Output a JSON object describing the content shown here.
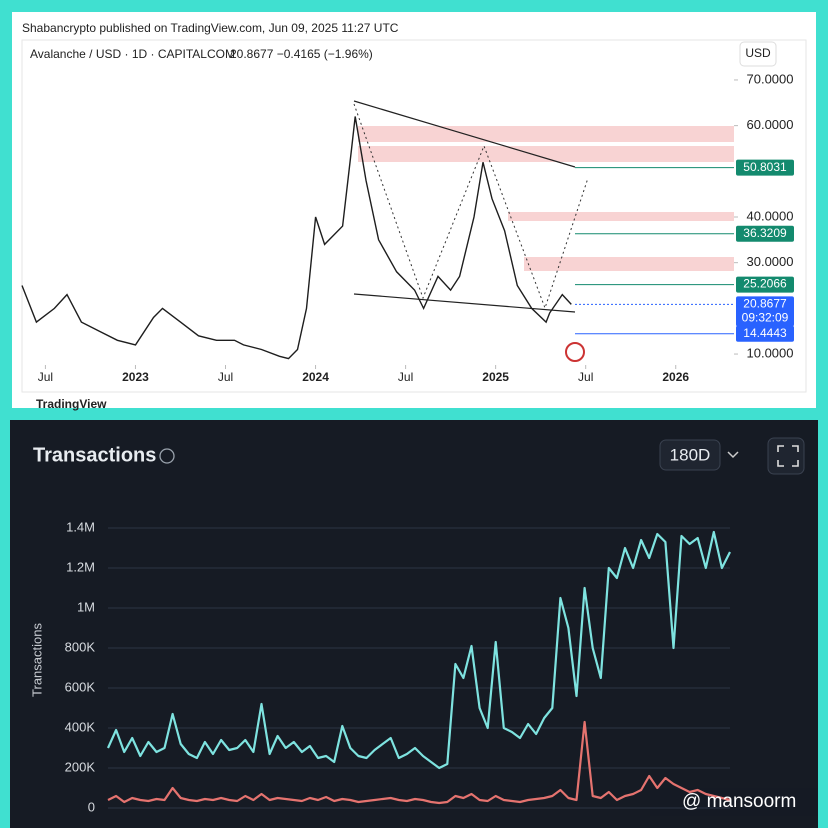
{
  "chart_data": [
    {
      "type": "price",
      "source": "Shabancrypto published on TradingView.com, Jun 09, 2025 11:27 UTC",
      "title": "Avalanche / USD · 1D · CAPITALCOM",
      "price_info": "20.8677 −0.4165 (−1.96%)",
      "currency": "USD",
      "brand": "TradingView",
      "x": [
        2022.37,
        2022.45,
        2022.55,
        2022.62,
        2022.7,
        2022.8,
        2022.9,
        2023.0,
        2023.1,
        2023.15,
        2023.25,
        2023.35,
        2023.45,
        2023.55,
        2023.6,
        2023.7,
        2023.8,
        2023.85,
        2023.9,
        2023.95,
        2024.0,
        2024.05,
        2024.15,
        2024.2,
        2024.22,
        2024.28,
        2024.35,
        2024.45,
        2024.55,
        2024.6,
        2024.68,
        2024.75,
        2024.8,
        2024.88,
        2024.93,
        2024.98,
        2025.05,
        2025.12,
        2025.2,
        2025.28,
        2025.3,
        2025.37,
        2025.42
      ],
      "values": [
        25,
        17,
        20,
        23,
        17,
        15,
        13,
        12,
        18,
        20,
        17,
        14,
        13,
        13,
        12,
        11,
        9.5,
        9,
        11,
        20,
        40,
        34,
        38,
        55,
        62,
        48,
        35,
        28,
        24,
        20,
        27,
        24,
        27,
        40,
        52,
        44,
        37,
        25,
        20,
        17,
        19,
        23,
        20.8677
      ],
      "color": "#1e1e1e",
      "xlim": [
        2022.37,
        2026.69
      ],
      "ylim": [
        7.6,
        78
      ],
      "xticks": [
        {
          "value": 2022.5,
          "label": "Jul"
        },
        {
          "value": 2023,
          "label": "2023"
        },
        {
          "value": 2023.5,
          "label": "Jul"
        },
        {
          "value": 2024,
          "label": "2024"
        },
        {
          "value": 2024.5,
          "label": "Jul"
        },
        {
          "value": 2025,
          "label": "2025"
        },
        {
          "value": 2025.5,
          "label": "Jul"
        },
        {
          "value": 2026,
          "label": "2026"
        }
      ],
      "yticks": [
        {
          "value": 70,
          "label": "70.0000"
        },
        {
          "value": 60,
          "label": "60.0000"
        },
        {
          "value": 40,
          "label": "40.0000"
        },
        {
          "value": 30,
          "label": "30.0000"
        },
        {
          "value": 10,
          "label": "10.0000"
        }
      ],
      "levels": [
        {
          "value": 50.8031,
          "color": "#138a6e"
        },
        {
          "value": 36.3209,
          "color": "#138a6e"
        },
        {
          "value": 25.2066,
          "color": "#138a6e"
        },
        {
          "value": 20.8677,
          "color": "#2962ff"
        },
        {
          "value": 14.4443,
          "color": "#2962ff"
        }
      ],
      "countdown": "09:32:09"
    },
    {
      "type": "line",
      "title": "Transactions",
      "ylabel": "Transactions",
      "range_button": "180D",
      "watermark": "@ mansoorm",
      "series": [
        {
          "color": "#7ee3e0",
          "values": [
            300000,
            390000,
            280000,
            350000,
            260000,
            330000,
            280000,
            300000,
            470000,
            320000,
            270000,
            250000,
            330000,
            270000,
            340000,
            290000,
            300000,
            340000,
            280000,
            520000,
            270000,
            360000,
            300000,
            330000,
            280000,
            310000,
            250000,
            260000,
            230000,
            410000,
            300000,
            260000,
            250000,
            290000,
            320000,
            350000,
            250000,
            270000,
            300000,
            260000,
            230000,
            200000,
            220000,
            720000,
            650000,
            810000,
            500000,
            400000,
            830000,
            400000,
            380000,
            350000,
            420000,
            370000,
            450000,
            500000,
            1050000,
            900000,
            560000,
            1100000,
            800000,
            650000,
            1200000,
            1150000,
            1300000,
            1200000,
            1340000,
            1250000,
            1370000,
            1330000,
            800000,
            1360000,
            1320000,
            1350000,
            1200000,
            1380000,
            1200000,
            1280000
          ]
        },
        {
          "color": "#e5736f",
          "values": [
            40000,
            60000,
            30000,
            50000,
            40000,
            35000,
            45000,
            40000,
            100000,
            50000,
            40000,
            35000,
            45000,
            40000,
            50000,
            40000,
            35000,
            60000,
            40000,
            70000,
            40000,
            50000,
            45000,
            40000,
            35000,
            50000,
            40000,
            55000,
            35000,
            45000,
            40000,
            30000,
            35000,
            40000,
            45000,
            50000,
            40000,
            35000,
            45000,
            40000,
            30000,
            25000,
            30000,
            60000,
            50000,
            70000,
            40000,
            35000,
            60000,
            40000,
            35000,
            30000,
            40000,
            45000,
            50000,
            60000,
            90000,
            50000,
            40000,
            430000,
            60000,
            50000,
            80000,
            40000,
            60000,
            70000,
            90000,
            160000,
            100000,
            150000,
            120000,
            100000,
            80000,
            90000,
            70000,
            60000,
            50000,
            40000
          ]
        }
      ],
      "ylim": [
        0,
        1480000
      ],
      "yticks": [
        0,
        {
          "value": 200000,
          "label": "200K"
        },
        {
          "value": 400000,
          "label": "400K"
        },
        {
          "value": 600000,
          "label": "600K"
        },
        {
          "value": 800000,
          "label": "800K"
        },
        {
          "value": 1000000,
          "label": "1M"
        },
        {
          "value": 1200000,
          "label": "1.2M"
        },
        {
          "value": 1400000,
          "label": "1.4M"
        }
      ],
      "grid": true
    }
  ]
}
